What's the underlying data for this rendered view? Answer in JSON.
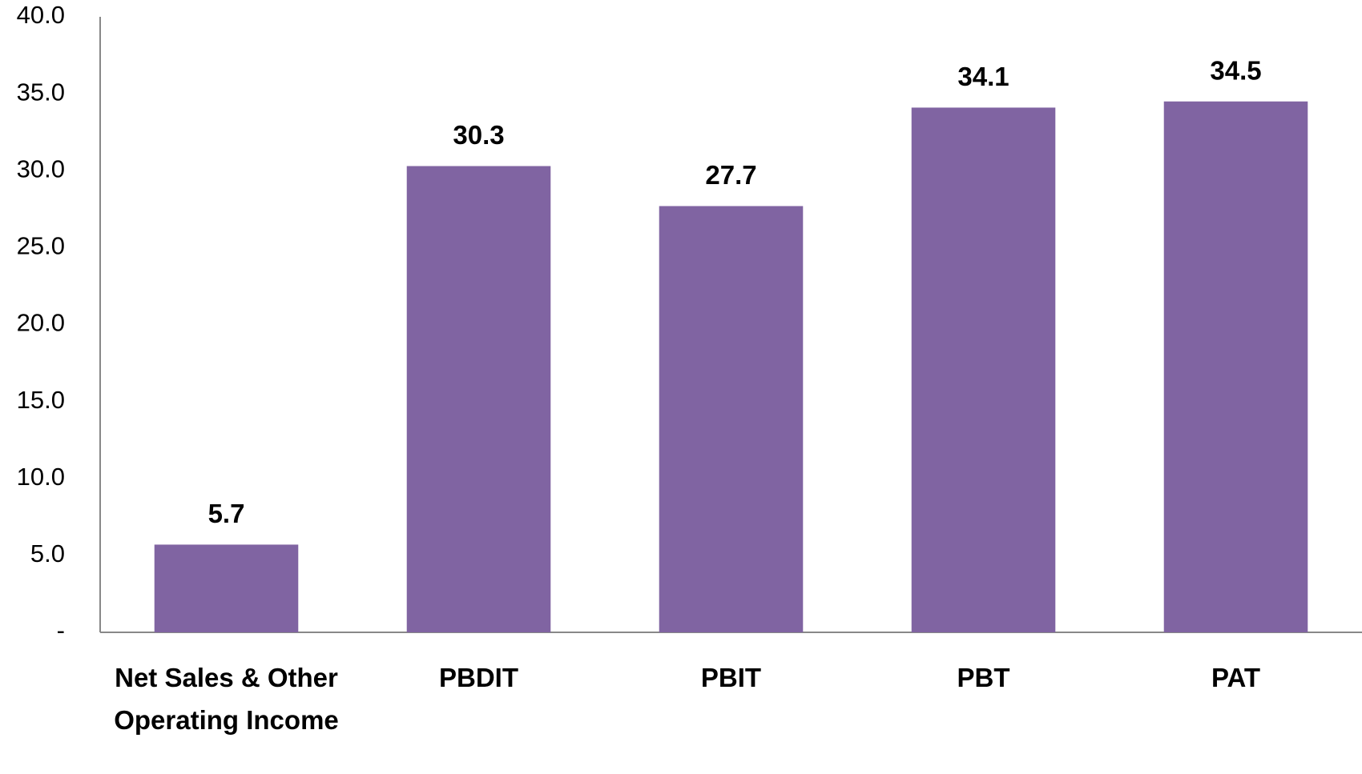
{
  "chart_data": {
    "type": "bar",
    "categories": [
      "Net Sales & Other Operating Income",
      "PBDIT",
      "PBIT",
      "PBT",
      "PAT"
    ],
    "values": [
      5.7,
      30.3,
      27.7,
      34.1,
      34.5
    ],
    "color": "#8064a2",
    "ylim": [
      0,
      40
    ],
    "yticks": [
      {
        "value": 0,
        "label": "-"
      },
      {
        "value": 5,
        "label": "5.0"
      },
      {
        "value": 10,
        "label": "10.0"
      },
      {
        "value": 15,
        "label": "15.0"
      },
      {
        "value": 20,
        "label": "20.0"
      },
      {
        "value": 25,
        "label": "25.0"
      },
      {
        "value": 30,
        "label": "30.0"
      },
      {
        "value": 35,
        "label": "35.0"
      },
      {
        "value": 40,
        "label": "40.0"
      }
    ],
    "grid": false
  }
}
